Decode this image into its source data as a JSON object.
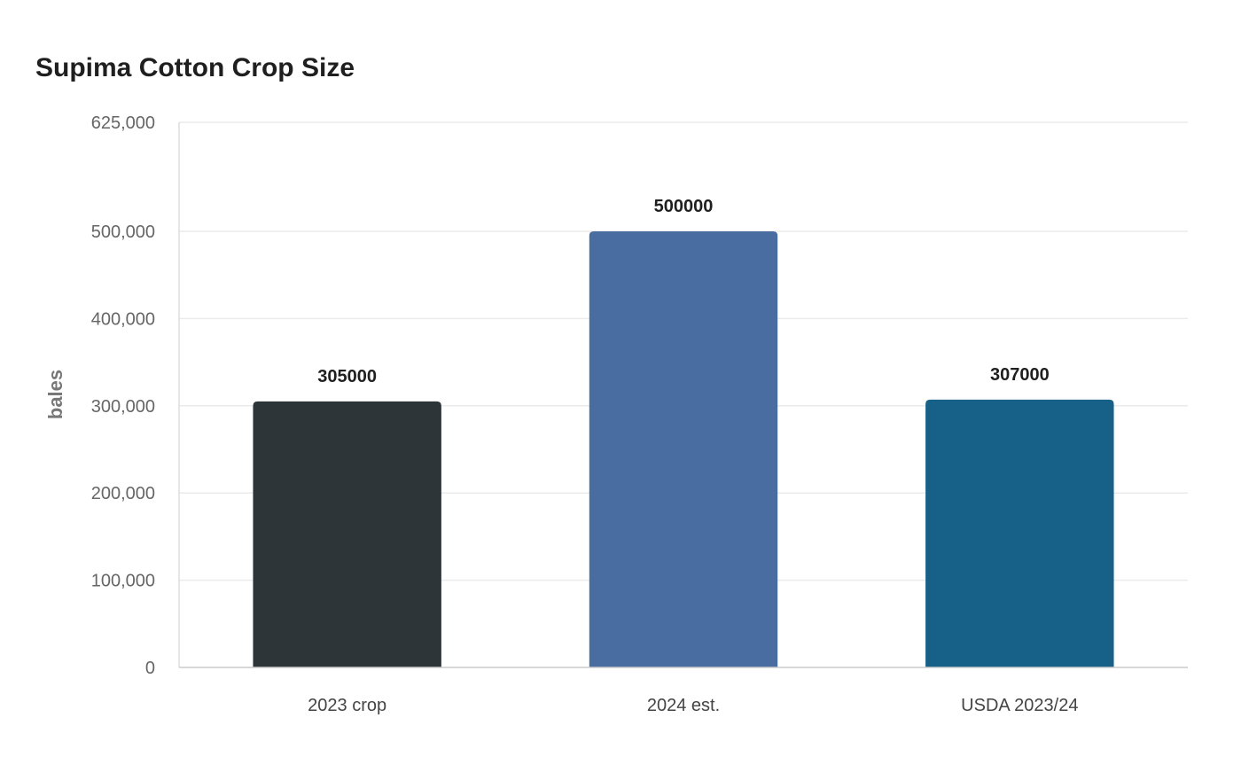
{
  "chart_data": {
    "type": "bar",
    "title": "Supima Cotton Crop Size",
    "xlabel": "",
    "ylabel": "bales",
    "categories": [
      "2023 crop",
      "2024 est.",
      "USDA 2023/24"
    ],
    "values": [
      305000,
      500000,
      307000
    ],
    "data_labels": [
      "305000",
      "500000",
      "307000"
    ],
    "colors": [
      "#2e3538",
      "#4a6da1",
      "#176087"
    ],
    "ylim": [
      0,
      625000
    ],
    "yticks": [
      0,
      100000,
      200000,
      300000,
      400000,
      500000,
      625000
    ],
    "ytick_labels": [
      "0",
      "100,000",
      "200,000",
      "300,000",
      "400,000",
      "500,000",
      "625,000"
    ],
    "grid": true,
    "legend": "none"
  }
}
